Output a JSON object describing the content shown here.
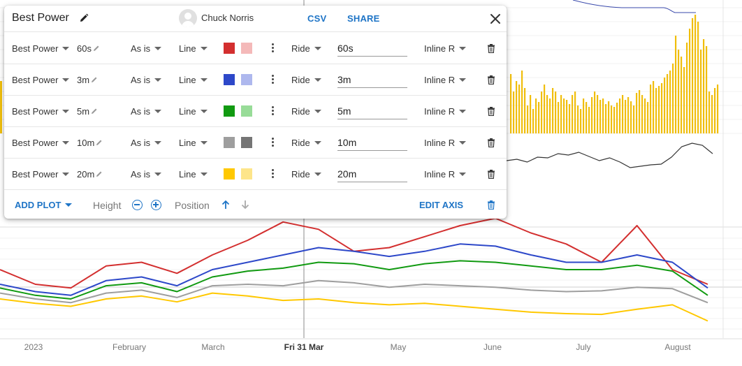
{
  "dialog": {
    "title": "Best Power",
    "user_name": "Chuck Norris",
    "csv_label": "CSV",
    "share_label": "SHARE",
    "rows": [
      {
        "metric": "Best Power",
        "duration": "60s",
        "transform": "As is",
        "type": "Line",
        "color": "#d32f2f",
        "color_light": "#f4b9b9",
        "source": "Ride",
        "value": "60s",
        "axis": "Inline R"
      },
      {
        "metric": "Best Power",
        "duration": "3m",
        "transform": "As is",
        "type": "Line",
        "color": "#2d48c9",
        "color_light": "#aeb8ee",
        "source": "Ride",
        "value": "3m",
        "axis": "Inline R"
      },
      {
        "metric": "Best Power",
        "duration": "5m",
        "transform": "As is",
        "type": "Line",
        "color": "#119a11",
        "color_light": "#98dc98",
        "source": "Ride",
        "value": "5m",
        "axis": "Inline R"
      },
      {
        "metric": "Best Power",
        "duration": "10m",
        "transform": "As is",
        "type": "Line",
        "color": "#9e9e9e",
        "color_light": "#757575",
        "source": "Ride",
        "value": "10m",
        "axis": "Inline R"
      },
      {
        "metric": "Best Power",
        "duration": "20m",
        "transform": "As is",
        "type": "Line",
        "color": "#ffc800",
        "color_light": "#fde58a",
        "source": "Ride",
        "value": "20m",
        "axis": "Inline R"
      }
    ],
    "footer": {
      "add_plot_label": "ADD PLOT",
      "height_label": "Height",
      "position_label": "Position",
      "edit_axis_label": "EDIT AXIS"
    }
  },
  "chart_data": {
    "type": "line",
    "x_axis_labels": [
      "2023",
      "February",
      "March",
      "Fri 31 Mar",
      "May",
      "June",
      "July",
      "August"
    ],
    "highlighted_label": "Fri 31 Mar",
    "series": [
      {
        "color": "#d32f2f",
        "values": [
          140,
          120,
          115,
          145,
          150,
          135,
          160,
          180,
          205,
          195,
          165,
          170,
          185,
          200,
          210,
          190,
          175,
          150,
          200,
          140,
          120
        ]
      },
      {
        "color": "#2d48c9",
        "values": [
          120,
          110,
          105,
          125,
          130,
          118,
          140,
          150,
          160,
          170,
          165,
          158,
          165,
          175,
          172,
          160,
          150,
          150,
          160,
          150,
          115
        ]
      },
      {
        "color": "#119a11",
        "values": [
          115,
          105,
          100,
          118,
          122,
          110,
          130,
          138,
          142,
          150,
          148,
          140,
          148,
          152,
          150,
          145,
          140,
          140,
          146,
          138,
          105
        ]
      },
      {
        "color": "#9e9e9e",
        "values": [
          108,
          100,
          95,
          108,
          112,
          102,
          118,
          120,
          118,
          125,
          122,
          116,
          120,
          118,
          116,
          112,
          110,
          111,
          116,
          114,
          95
        ]
      },
      {
        "color": "#ffc800",
        "values": [
          100,
          94,
          90,
          100,
          104,
          96,
          108,
          104,
          98,
          100,
          95,
          92,
          94,
          90,
          86,
          82,
          80,
          79,
          86,
          92,
          70
        ]
      }
    ],
    "bars": {
      "color": "#f0be0c",
      "values": [
        85,
        60,
        75,
        70,
        90,
        65,
        40,
        55,
        35,
        50,
        45,
        60,
        70,
        55,
        50,
        65,
        60,
        45,
        55,
        50,
        48,
        42,
        55,
        60,
        40,
        35,
        50,
        45,
        38,
        52,
        60,
        55,
        48,
        50,
        42,
        46,
        40,
        38,
        44,
        50,
        55,
        48,
        52,
        46,
        40,
        58,
        62,
        55,
        50,
        45,
        70,
        75,
        65,
        68,
        72,
        80,
        85,
        90,
        100,
        140,
        120,
        110,
        95,
        130,
        150,
        165,
        170,
        160,
        120,
        135,
        125,
        60,
        55,
        65,
        70
      ]
    },
    "top_line": {
      "color": "#333333",
      "values": [
        30,
        32,
        28,
        35,
        34,
        40,
        38,
        42,
        36,
        30,
        34,
        28,
        20,
        22,
        24,
        25,
        35,
        50,
        55,
        52,
        40
      ]
    },
    "profile_line": {
      "color": "#3949ab"
    }
  }
}
